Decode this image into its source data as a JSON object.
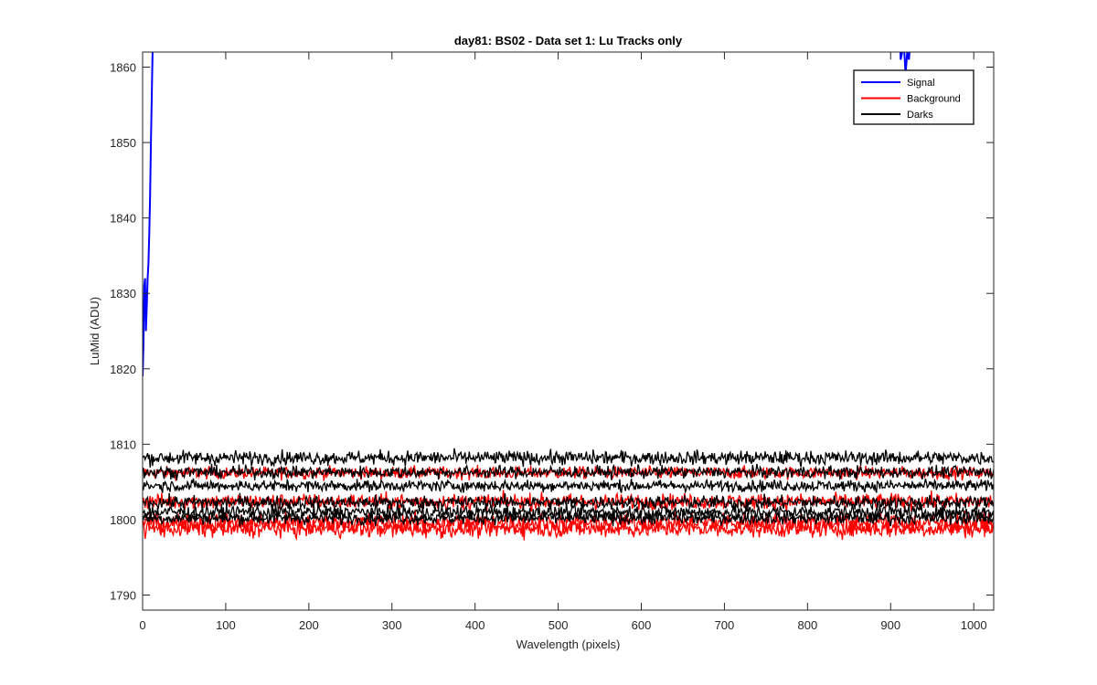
{
  "chart_data": {
    "type": "line",
    "title": "day81: BS02 - Data set 1: Lu Tracks only",
    "xlabel": "Wavelength (pixels)",
    "ylabel": "LuMid (ADU)",
    "xlim": [
      0,
      1024
    ],
    "ylim": [
      1788,
      1862
    ],
    "xticks": [
      0,
      100,
      200,
      300,
      400,
      500,
      600,
      700,
      800,
      900,
      1000
    ],
    "yticks": [
      1790,
      1800,
      1810,
      1820,
      1830,
      1840,
      1850,
      1860
    ],
    "grid": false,
    "legend_position": "top-right",
    "series": [
      {
        "name": "Signal",
        "color": "#0000ff",
        "segments": [
          {
            "x": [
              0,
              1,
              2,
              3,
              4,
              5,
              6,
              7,
              8,
              9,
              10,
              11,
              12,
              13
            ],
            "y": [
              1819,
              1823,
              1831,
              1832,
              1825,
              1828,
              1832,
              1834,
              1838,
              1843,
              1850,
              1856,
              1862,
              1868
            ]
          },
          {
            "x": [
              910,
              912,
              914,
              916,
              918,
              920,
              922,
              924
            ],
            "y": [
              1868,
              1861,
              1862,
              1863,
              1859,
              1862,
              1861,
              1864
            ]
          }
        ]
      },
      {
        "name": "Background",
        "color": "#ff0000",
        "traces": [
          {
            "base": 1806.2,
            "amp": 1.4
          },
          {
            "base": 1802.4,
            "amp": 1.8
          },
          {
            "base": 1799.6,
            "amp": 2.2
          },
          {
            "base": 1798.8,
            "amp": 2.0
          }
        ]
      },
      {
        "name": "Darks",
        "color": "#000000",
        "traces": [
          {
            "base": 1808.2,
            "amp": 1.6
          },
          {
            "base": 1806.3,
            "amp": 1.4
          },
          {
            "base": 1804.5,
            "amp": 1.3
          },
          {
            "base": 1802.3,
            "amp": 1.5
          },
          {
            "base": 1801.0,
            "amp": 1.6
          },
          {
            "base": 1800.2,
            "amp": 1.4
          }
        ]
      }
    ]
  }
}
